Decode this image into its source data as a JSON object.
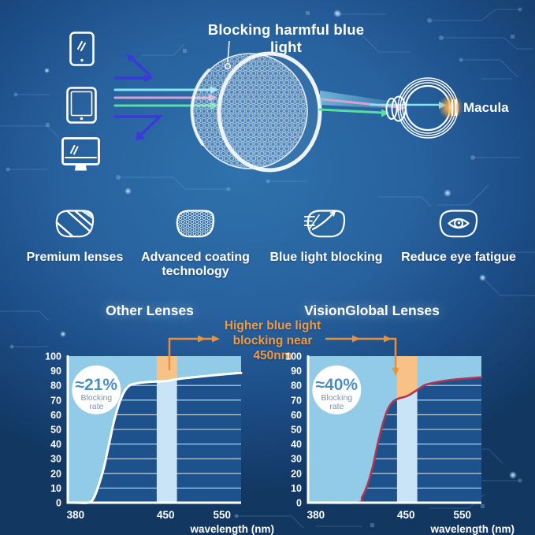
{
  "colors": {
    "background_top": "#2f72ad",
    "background_bottom": "#123862",
    "accent_orange": "#ef9340",
    "ray_blocked_blue": "#3c38d9",
    "ray_cyan": "#85e6f3",
    "ray_pink": "#d2a3cf",
    "ray_green": "#55e0a2",
    "chart_plot_bg": "#1d528c",
    "chart_area_fill": "#92cbe8",
    "chart_band_fill": "#c8e4f6",
    "chart_band_orange": "#f8c287",
    "macula_glow": "#f7a940"
  },
  "hero": {
    "title": "Blocking harmful blue light",
    "macula_label": "Macula",
    "device_icons": [
      "smartphone-icon",
      "tablet-icon",
      "monitor-icon"
    ]
  },
  "features": [
    {
      "icon": "premium-lens-icon",
      "label": "Premium lenses"
    },
    {
      "icon": "coated-lens-icon",
      "label": "Advanced coating technology"
    },
    {
      "icon": "blue-light-blocking-icon",
      "label": "Blue light blocking"
    },
    {
      "icon": "reduce-eye-fatigue-icon",
      "label": "Reduce eye fatigue"
    }
  ],
  "comparison": {
    "annotation_line1": "Higher blue light",
    "annotation_line2": "blocking near 450nm"
  },
  "chart_data": [
    {
      "type": "area",
      "title": "Other Lenses",
      "xlabel": "wavelength (nm)",
      "ylabel": "",
      "xticks": [
        380,
        450,
        550
      ],
      "yticks": [
        0,
        10,
        20,
        30,
        40,
        50,
        60,
        70,
        80,
        90,
        100
      ],
      "ylim": [
        0,
        100
      ],
      "badge_value": "≈21%",
      "badge_label_line1": "Blocking",
      "badge_label_line2": "rate",
      "highlight_band_nm": [
        443,
        470
      ],
      "pointer": "line",
      "curve_color": "#ffffff",
      "curve_width": 3,
      "series_name": "blocking rate curve",
      "curve": [
        [
          380,
          0
        ],
        [
          390,
          0
        ],
        [
          394,
          3
        ],
        [
          398,
          12
        ],
        [
          402,
          24
        ],
        [
          406,
          40
        ],
        [
          410,
          56
        ],
        [
          414,
          68
        ],
        [
          418,
          76
        ],
        [
          422,
          80
        ],
        [
          428,
          81.5
        ],
        [
          436,
          82.3
        ],
        [
          450,
          83
        ],
        [
          465,
          84
        ],
        [
          485,
          85
        ],
        [
          510,
          86
        ],
        [
          535,
          87
        ],
        [
          550,
          87.5
        ],
        [
          580,
          88.5
        ]
      ]
    },
    {
      "type": "area",
      "title": "VisionGlobal Lenses",
      "xlabel": "wavelength (nm)",
      "ylabel": "",
      "xticks": [
        380,
        450,
        550
      ],
      "yticks": [
        0,
        10,
        20,
        30,
        40,
        50,
        60,
        70,
        80,
        90,
        100
      ],
      "ylim": [
        0,
        100
      ],
      "badge_value": "≈40%",
      "badge_label_line1": "Blocking",
      "badge_label_line2": "rate",
      "highlight_band_nm": [
        443,
        470
      ],
      "pointer": "arrow",
      "curve_color": "#b03552",
      "curve_width": 2.6,
      "series_name": "blocking rate curve",
      "curve": [
        [
          380,
          0
        ],
        [
          412,
          0
        ],
        [
          416,
          4
        ],
        [
          420,
          12
        ],
        [
          424,
          24
        ],
        [
          428,
          40
        ],
        [
          432,
          54
        ],
        [
          436,
          64
        ],
        [
          440,
          69
        ],
        [
          444,
          71
        ],
        [
          450,
          72.5
        ],
        [
          458,
          74
        ],
        [
          466,
          76
        ],
        [
          474,
          78
        ],
        [
          482,
          80
        ],
        [
          495,
          81.5
        ],
        [
          515,
          83
        ],
        [
          535,
          84
        ],
        [
          550,
          84.5
        ],
        [
          580,
          85.5
        ]
      ]
    }
  ]
}
